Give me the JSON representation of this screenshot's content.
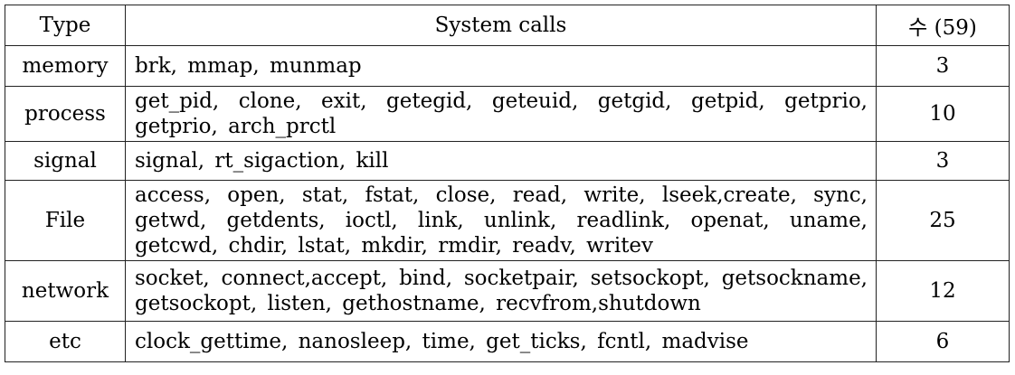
{
  "table": {
    "headers": {
      "type": "Type",
      "calls": "System calls",
      "count": "수 (59)"
    },
    "rows": [
      {
        "type": "memory",
        "calls": "brk, mmap, munmap",
        "count": "3"
      },
      {
        "type": "process",
        "calls": "get_pid, clone, exit, getegid, geteuid, getgid, getpid, getprio, getprio, arch_prctl",
        "count": "10"
      },
      {
        "type": "signal",
        "calls": "signal, rt_sigaction, kill",
        "count": "3"
      },
      {
        "type": "File",
        "calls": "access, open, stat, fstat, close, read, write, lseek,create, sync, getwd, getdents, ioctl, link, unlink, readlink, openat, uname, getcwd, chdir, lstat, mkdir, rmdir, readv, writev",
        "count": "25"
      },
      {
        "type": "network",
        "calls": "socket, connect,accept, bind, socketpair, setsockopt, getsockname, getsockopt, listen, gethostname, recvfrom,shutdown",
        "count": "12"
      },
      {
        "type": "etc",
        "calls": "clock_gettime, nanosleep, time, get_ticks, fcntl, madvise",
        "count": "6"
      }
    ]
  }
}
